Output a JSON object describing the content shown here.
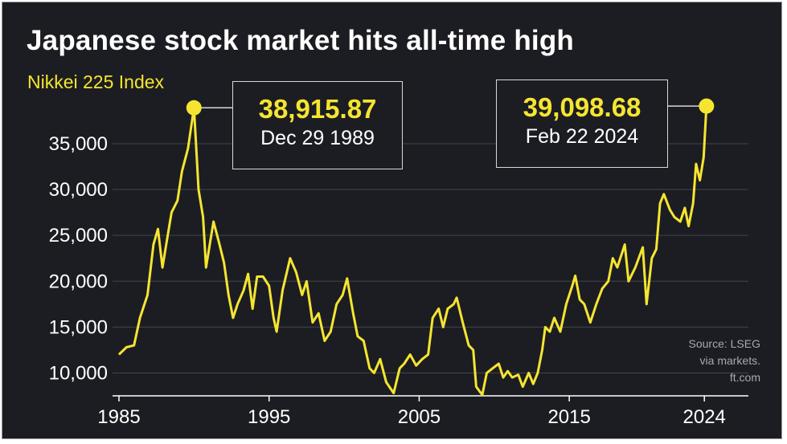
{
  "chart_data": {
    "type": "line",
    "title": "Japanese stock market hits all-time high",
    "subtitle": "Nikkei 225 Index",
    "xlabel": "",
    "ylabel": "",
    "xlim": [
      1985,
      2024.15
    ],
    "ylim": [
      7500,
      39200
    ],
    "x_ticks": [
      1985,
      1995,
      2005,
      2015,
      2024
    ],
    "y_ticks": [
      10000,
      15000,
      20000,
      25000,
      30000,
      35000
    ],
    "y_tick_labels": [
      "10,000",
      "15,000",
      "20,000",
      "25,000",
      "30,000",
      "35,000"
    ],
    "grid": "horizontal",
    "legend": "none",
    "series": [
      {
        "color": "#f5e531",
        "points": [
          [
            1985.0,
            12000
          ],
          [
            1985.5,
            12800
          ],
          [
            1986.0,
            13000
          ],
          [
            1986.4,
            16000
          ],
          [
            1986.9,
            18500
          ],
          [
            1987.3,
            24000
          ],
          [
            1987.6,
            25700
          ],
          [
            1987.9,
            21500
          ],
          [
            1988.2,
            24500
          ],
          [
            1988.5,
            27500
          ],
          [
            1988.9,
            28800
          ],
          [
            1989.2,
            32000
          ],
          [
            1989.6,
            34500
          ],
          [
            1989.995,
            38915.87
          ],
          [
            1990.3,
            30000
          ],
          [
            1990.6,
            27000
          ],
          [
            1990.8,
            21500
          ],
          [
            1991.0,
            23500
          ],
          [
            1991.3,
            26500
          ],
          [
            1991.7,
            24000
          ],
          [
            1992.0,
            22000
          ],
          [
            1992.3,
            18500
          ],
          [
            1992.6,
            16000
          ],
          [
            1992.9,
            17500
          ],
          [
            1993.3,
            19000
          ],
          [
            1993.6,
            20800
          ],
          [
            1993.9,
            17000
          ],
          [
            1994.2,
            20500
          ],
          [
            1994.6,
            20500
          ],
          [
            1995.0,
            19500
          ],
          [
            1995.3,
            16000
          ],
          [
            1995.5,
            14500
          ],
          [
            1995.9,
            19000
          ],
          [
            1996.4,
            22500
          ],
          [
            1996.8,
            21000
          ],
          [
            1997.2,
            18500
          ],
          [
            1997.5,
            20000
          ],
          [
            1997.9,
            15500
          ],
          [
            1998.3,
            16500
          ],
          [
            1998.7,
            13500
          ],
          [
            1999.1,
            14500
          ],
          [
            1999.5,
            17500
          ],
          [
            1999.9,
            18500
          ],
          [
            2000.2,
            20300
          ],
          [
            2000.6,
            16500
          ],
          [
            2000.9,
            14000
          ],
          [
            2001.3,
            13500
          ],
          [
            2001.7,
            10500
          ],
          [
            2002.0,
            10000
          ],
          [
            2002.4,
            11500
          ],
          [
            2002.8,
            9000
          ],
          [
            2003.3,
            7800
          ],
          [
            2003.7,
            10500
          ],
          [
            2004.0,
            11000
          ],
          [
            2004.4,
            12000
          ],
          [
            2004.8,
            10800
          ],
          [
            2005.2,
            11500
          ],
          [
            2005.6,
            12000
          ],
          [
            2005.9,
            16000
          ],
          [
            2006.3,
            17000
          ],
          [
            2006.6,
            15000
          ],
          [
            2006.9,
            17000
          ],
          [
            2007.3,
            17500
          ],
          [
            2007.5,
            18200
          ],
          [
            2007.9,
            15500
          ],
          [
            2008.3,
            13000
          ],
          [
            2008.6,
            12500
          ],
          [
            2008.8,
            8500
          ],
          [
            2009.2,
            7600
          ],
          [
            2009.5,
            10000
          ],
          [
            2009.9,
            10500
          ],
          [
            2010.3,
            11000
          ],
          [
            2010.6,
            9500
          ],
          [
            2010.9,
            10200
          ],
          [
            2011.2,
            9500
          ],
          [
            2011.6,
            9800
          ],
          [
            2011.9,
            8500
          ],
          [
            2012.3,
            10000
          ],
          [
            2012.6,
            8800
          ],
          [
            2012.9,
            10000
          ],
          [
            2013.2,
            12500
          ],
          [
            2013.4,
            15000
          ],
          [
            2013.7,
            14500
          ],
          [
            2014.0,
            16000
          ],
          [
            2014.4,
            14500
          ],
          [
            2014.8,
            17500
          ],
          [
            2015.2,
            19500
          ],
          [
            2015.4,
            20600
          ],
          [
            2015.7,
            18000
          ],
          [
            2016.0,
            17500
          ],
          [
            2016.4,
            15500
          ],
          [
            2016.8,
            17500
          ],
          [
            2017.2,
            19200
          ],
          [
            2017.6,
            20000
          ],
          [
            2017.9,
            22500
          ],
          [
            2018.2,
            21500
          ],
          [
            2018.7,
            24000
          ],
          [
            2018.95,
            20000
          ],
          [
            2019.4,
            21500
          ],
          [
            2019.9,
            23700
          ],
          [
            2020.15,
            17500
          ],
          [
            2020.5,
            22500
          ],
          [
            2020.8,
            23500
          ],
          [
            2021.05,
            28500
          ],
          [
            2021.3,
            29500
          ],
          [
            2021.7,
            27800
          ],
          [
            2022.0,
            27000
          ],
          [
            2022.4,
            26500
          ],
          [
            2022.7,
            28000
          ],
          [
            2022.95,
            26000
          ],
          [
            2023.25,
            28500
          ],
          [
            2023.45,
            32800
          ],
          [
            2023.7,
            31000
          ],
          [
            2023.95,
            33500
          ],
          [
            2024.14,
            39098.68
          ]
        ]
      }
    ],
    "annotations": [
      {
        "value": "38,915.87",
        "date": "Dec 29 1989",
        "x": 1989.995,
        "y": 38915.87
      },
      {
        "value": "39,098.68",
        "date": "Feb 22 2024",
        "x": 2024.14,
        "y": 39098.68
      }
    ],
    "source_lines": [
      "Source: LSEG",
      "via markets.",
      "ft.com"
    ]
  }
}
